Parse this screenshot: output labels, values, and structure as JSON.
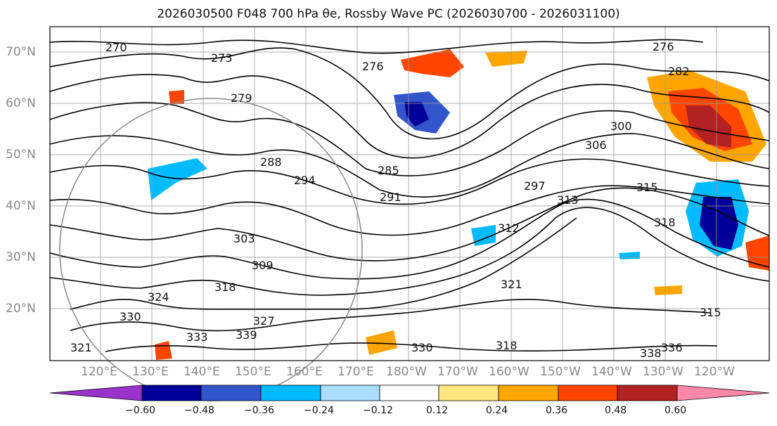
{
  "title": "2026030500 F048 700 hPa θe, Rossby Wave PC (2026030700 - 2026031100)",
  "lat_labels": [
    "70°N",
    "60°N",
    "50°N",
    "40°N",
    "30°N",
    "20°N"
  ],
  "lon_labels": [
    "120°E",
    "130°E",
    "140°E",
    "150°E",
    "160°E",
    "170°E",
    "180°W",
    "170°W",
    "160°W",
    "150°W",
    "140°W",
    "130°W",
    "120°W"
  ],
  "colorbar": {
    "ticks": [
      "−0.60",
      "−0.48",
      "−0.36",
      "−0.24",
      "−0.12",
      "0.12",
      "0.24",
      "0.36",
      "0.48",
      "0.60"
    ],
    "colors": [
      "#9933cc",
      "#000099",
      "#3355cc",
      "#00bbff",
      "#aaddff",
      "#ffffff",
      "#ffe680",
      "#ffa500",
      "#ff4500",
      "#b22222",
      "#ff88aa"
    ]
  },
  "contour_labels": [
    "270",
    "273",
    "276",
    "276",
    "279",
    "282",
    "285",
    "288",
    "291",
    "294",
    "297",
    "300",
    "303",
    "306",
    "309",
    "312",
    "313",
    "315",
    "315",
    "318",
    "318",
    "318",
    "321",
    "321",
    "324",
    "327",
    "330",
    "330",
    "333",
    "336",
    "338",
    "339"
  ],
  "colors": {
    "contour": "#000000",
    "coast": "#000000",
    "grid": "#999999",
    "circle": "#888888"
  }
}
